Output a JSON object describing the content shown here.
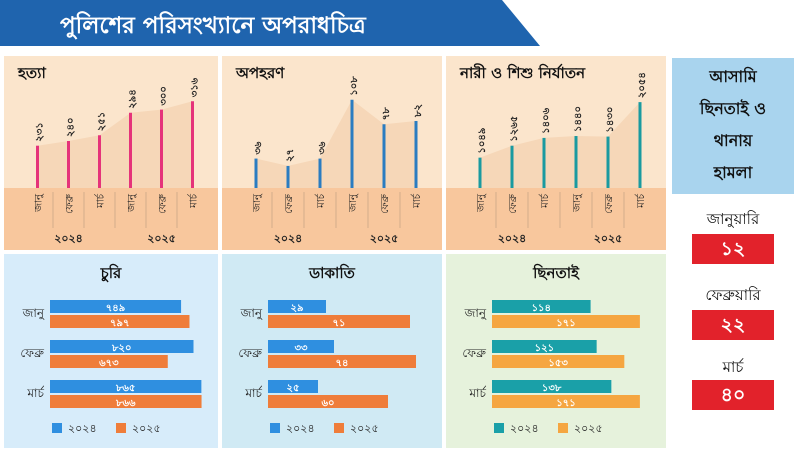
{
  "title": "পুলিশের পরিসংখ্যানে অপরাধচিত্র",
  "colors": {
    "title_bar": "#1f64ae",
    "top_panel_bg": "#fbe5cc",
    "top_panel_band": "#f8c79d",
    "top_area_fill": "#f6d7b8",
    "pink_line": "#e5337a",
    "blue_line": "#2a7cc1",
    "teal_line": "#1a9aa0",
    "bar_2024_blue": "#2f8fe0",
    "bar_2024_teal": "#1aa0a8",
    "bar_2025": "#ef7d3a",
    "bar_2025_light": "#f5a641",
    "bottom_bg_left": "#d7ecfa",
    "bottom_bg_mid": "#d0eaf4",
    "bottom_bg_right": "#e6f2dc",
    "side_box": "#a9d4ee",
    "side_value": "#e2222b"
  },
  "chart_data": [
    {
      "type": "bar",
      "title": "হত্যা",
      "categories": [
        "জানু",
        "ফেব্রু",
        "মার্চ",
        "জানু",
        "ফেব্রু",
        "মার্চ"
      ],
      "category_labels": [
        "জানু",
        "ফেব্রু",
        "মার্চ",
        "জানু",
        "ফেব্রু",
        "মার্চ"
      ],
      "values": [
        231,
        240,
        251,
        294,
        300,
        316
      ],
      "value_labels": [
        "২৩১",
        "২৪০",
        "২৫১",
        "২৯৪",
        "৩০০",
        "৩১৬"
      ],
      "groups": [
        "২০২৪",
        "২০২৫"
      ],
      "ylim": [
        150,
        330
      ]
    },
    {
      "type": "bar",
      "title": "অপহরণ",
      "categories": [
        "জানু",
        "ফেব্রু",
        "মার্চ",
        "জানু",
        "ফেব্রু",
        "মার্চ"
      ],
      "category_labels": [
        "জানু",
        "ফেব্রু",
        "মার্চ",
        "জানু",
        "ফেব্রু",
        "মার্চ"
      ],
      "values": [
        36,
        27,
        36,
        108,
        78,
        82
      ],
      "value_labels": [
        "৩৬",
        "২৭",
        "৩৬",
        "১০৮",
        "৭৮",
        "৮২"
      ],
      "groups": [
        "২০২৪",
        "২০২৫"
      ],
      "ylim": [
        0,
        115
      ]
    },
    {
      "type": "bar",
      "title": "নারী ও শিশু নির্যাতন",
      "categories": [
        "জানু",
        "ফেব্রু",
        "মার্চ",
        "জানু",
        "ফেব্রু",
        "মার্চ"
      ],
      "category_labels": [
        "জানু",
        "ফেব্রু",
        "মার্চ",
        "জানু",
        "ফেব্রু",
        "মার্চ"
      ],
      "values": [
        1049,
        1265,
        1406,
        1440,
        1430,
        2054
      ],
      "value_labels": [
        "১০৪৯",
        "১২৬৫",
        "১৪০৬",
        "১৪৪০",
        "১৪৩০",
        "২০৫৪"
      ],
      "groups": [
        "২০২৪",
        "২০২৫"
      ],
      "ylim": [
        500,
        2200
      ]
    },
    {
      "type": "bar",
      "orientation": "horizontal",
      "title": "চুরি",
      "categories": [
        "জানু",
        "ফেব্রু",
        "মার্চ"
      ],
      "series": [
        {
          "name": "২০২৪",
          "values": [
            749,
            820,
            865
          ],
          "value_labels": [
            "৭৪৯",
            "৮২০",
            "৮৬৫"
          ]
        },
        {
          "name": "২০২৫",
          "values": [
            797,
            673,
            866
          ],
          "value_labels": [
            "৭৯৭",
            "৬৭৩",
            "৮৬৬"
          ]
        }
      ],
      "xlim": [
        0,
        880
      ]
    },
    {
      "type": "bar",
      "orientation": "horizontal",
      "title": "ডাকাতি",
      "categories": [
        "জানু",
        "ফেব্রু",
        "মার্চ"
      ],
      "series": [
        {
          "name": "২০২৪",
          "values": [
            29,
            33,
            25
          ],
          "value_labels": [
            "২৯",
            "৩৩",
            "২৫"
          ]
        },
        {
          "name": "২০২৫",
          "values": [
            71,
            74,
            60
          ],
          "value_labels": [
            "৭১",
            "৭৪",
            "৬০"
          ]
        }
      ],
      "xlim": [
        0,
        80
      ]
    },
    {
      "type": "bar",
      "orientation": "horizontal",
      "title": "ছিনতাই",
      "categories": [
        "জানু",
        "ফেব্রু",
        "মার্চ"
      ],
      "series": [
        {
          "name": "২০২৪",
          "values": [
            114,
            121,
            138
          ],
          "value_labels": [
            "১১৪",
            "১২১",
            "১৩৮"
          ]
        },
        {
          "name": "২০২৫",
          "values": [
            171,
            153,
            171
          ],
          "value_labels": [
            "১৭১",
            "১৫৩",
            "১৭১"
          ]
        }
      ],
      "xlim": [
        0,
        185
      ]
    }
  ],
  "side_panel": {
    "title_lines": [
      "আসামি",
      "ছিনতাই ও",
      "থানায়",
      "হামলা"
    ],
    "items": [
      {
        "label": "জানুয়ারি",
        "value": "১২"
      },
      {
        "label": "ফেব্রুয়ারি",
        "value": "২২"
      },
      {
        "label": "মার্চ",
        "value": "৪০"
      }
    ]
  }
}
